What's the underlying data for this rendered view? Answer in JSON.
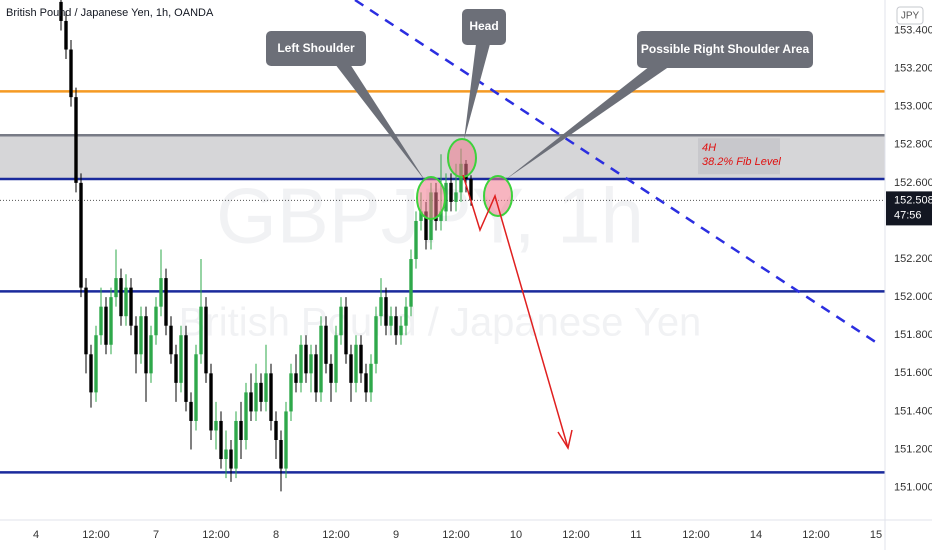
{
  "chart_data": {
    "type": "candlestick",
    "title": "British Pound / Japanese Yen, 1h, OANDA",
    "watermark_symbol": "GBPJPY, 1h",
    "watermark_name": "British Pound / Japanese Yen",
    "currency": "JPY",
    "up_color": "#2ea84a",
    "down_color": "#000000",
    "xlim": [
      -7.2,
      169.8
    ],
    "xticks": [
      {
        "value": 0,
        "label": "4"
      },
      {
        "value": 12,
        "label": "12:00"
      },
      {
        "value": 24,
        "label": "7"
      },
      {
        "value": 36,
        "label": "12:00"
      },
      {
        "value": 48,
        "label": "8"
      },
      {
        "value": 60,
        "label": "12:00"
      },
      {
        "value": 72,
        "label": "9"
      },
      {
        "value": 84,
        "label": "12:00"
      },
      {
        "value": 96,
        "label": "10"
      },
      {
        "value": 108,
        "label": "12:00"
      },
      {
        "value": 120,
        "label": "11"
      },
      {
        "value": 132,
        "label": "12:00"
      },
      {
        "value": 144,
        "label": "14"
      },
      {
        "value": 156,
        "label": "12:00"
      },
      {
        "value": 168,
        "label": "15"
      }
    ],
    "ylim": [
      150.83,
      153.56
    ],
    "yticks": [
      {
        "value": 153.4,
        "label": "153.400"
      },
      {
        "value": 153.2,
        "label": "153.200"
      },
      {
        "value": 153.0,
        "label": "153.000"
      },
      {
        "value": 152.8,
        "label": "152.800"
      },
      {
        "value": 152.6,
        "label": "152.600"
      },
      {
        "value": 152.2,
        "label": "152.200"
      },
      {
        "value": 152.0,
        "label": "152.000"
      },
      {
        "value": 151.8,
        "label": "151.800"
      },
      {
        "value": 151.6,
        "label": "151.600"
      },
      {
        "value": 151.4,
        "label": "151.400"
      },
      {
        "value": 151.2,
        "label": "151.200"
      },
      {
        "value": 151.0,
        "label": "151.000"
      }
    ],
    "grid": false,
    "x": [
      5,
      6,
      7,
      8,
      9,
      10,
      11,
      12,
      13,
      14,
      15,
      16,
      17,
      18,
      19,
      20,
      21,
      22,
      23,
      24,
      25,
      26,
      27,
      28,
      29,
      30,
      31,
      32,
      33,
      34,
      35,
      36,
      37,
      38,
      39,
      40,
      41,
      42,
      43,
      44,
      45,
      46,
      47,
      48,
      49,
      50,
      51,
      52,
      53,
      54,
      55,
      56,
      57,
      58,
      59,
      60,
      61,
      62,
      63,
      64,
      65,
      66,
      67,
      68,
      69,
      70,
      71,
      72,
      73,
      74,
      75,
      76,
      77,
      78,
      79,
      80,
      81,
      82,
      83,
      84,
      85,
      86,
      87
    ],
    "open": [
      153.55,
      153.45,
      153.3,
      153.05,
      152.6,
      152.05,
      151.7,
      151.5,
      151.8,
      151.95,
      151.75,
      152.0,
      152.1,
      151.9,
      152.05,
      151.85,
      151.7,
      151.9,
      151.6,
      151.8,
      151.95,
      152.1,
      151.85,
      151.7,
      151.55,
      151.8,
      151.45,
      151.35,
      151.7,
      151.95,
      151.6,
      151.3,
      151.35,
      151.15,
      151.2,
      151.1,
      151.35,
      151.25,
      151.5,
      151.4,
      151.55,
      151.45,
      151.6,
      151.35,
      151.25,
      151.1,
      151.4,
      151.6,
      151.55,
      151.75,
      151.6,
      151.7,
      151.5,
      151.85,
      151.65,
      151.55,
      151.8,
      151.95,
      151.7,
      151.55,
      151.75,
      151.6,
      151.5,
      151.65,
      151.9,
      152.0,
      151.85,
      151.9,
      151.8,
      151.85,
      151.95,
      152.2,
      152.4,
      152.45,
      152.3,
      152.55,
      152.4,
      152.45,
      152.6,
      152.5,
      152.55,
      152.7,
      152.62
    ],
    "high": [
      153.62,
      153.5,
      153.35,
      153.1,
      152.65,
      152.1,
      151.75,
      151.85,
      152.05,
      152.0,
      152.05,
      152.25,
      152.15,
      152.12,
      152.1,
      151.9,
      151.95,
      151.95,
      151.85,
      152.0,
      152.25,
      152.15,
      151.9,
      151.75,
      151.85,
      151.85,
      151.5,
      151.75,
      152.2,
      152.0,
      151.65,
      151.45,
      151.4,
      151.3,
      151.25,
      151.4,
      151.45,
      151.55,
      151.6,
      151.65,
      151.6,
      151.75,
      151.65,
      151.4,
      151.3,
      151.45,
      151.65,
      151.7,
      151.8,
      151.8,
      151.75,
      151.75,
      151.9,
      151.9,
      151.7,
      151.85,
      152.0,
      152.0,
      151.75,
      151.8,
      151.8,
      151.65,
      151.7,
      151.95,
      152.1,
      152.05,
      151.95,
      151.95,
      151.9,
      152.0,
      152.25,
      152.45,
      152.55,
      152.5,
      152.6,
      152.6,
      152.75,
      152.65,
      152.65,
      152.7,
      152.78,
      152.72,
      152.64
    ],
    "low": [
      153.4,
      153.25,
      153.0,
      152.55,
      152.0,
      151.6,
      151.42,
      151.45,
      151.75,
      151.7,
      151.7,
      151.95,
      151.85,
      151.85,
      151.8,
      151.6,
      151.65,
      151.45,
      151.55,
      151.75,
      151.9,
      151.8,
      151.65,
      151.45,
      151.5,
      151.4,
      151.2,
      151.3,
      151.65,
      151.55,
      151.25,
      151.2,
      151.1,
      151.05,
      151.03,
      151.05,
      151.15,
      151.2,
      151.35,
      151.35,
      151.4,
      151.4,
      151.3,
      151.15,
      150.98,
      151.05,
      151.35,
      151.5,
      151.5,
      151.55,
      151.5,
      151.45,
      151.45,
      151.6,
      151.45,
      151.5,
      151.75,
      151.65,
      151.45,
      151.5,
      151.55,
      151.45,
      151.45,
      151.6,
      151.85,
      151.8,
      151.8,
      151.75,
      151.75,
      151.8,
      151.9,
      152.15,
      152.35,
      152.25,
      152.25,
      152.35,
      152.35,
      152.4,
      152.45,
      152.45,
      152.5,
      152.55,
      152.48
    ],
    "close": [
      153.45,
      153.3,
      153.05,
      152.6,
      152.05,
      151.7,
      151.5,
      151.8,
      151.95,
      151.75,
      152.0,
      152.1,
      151.9,
      152.05,
      151.85,
      151.7,
      151.9,
      151.6,
      151.8,
      151.95,
      152.1,
      151.85,
      151.7,
      151.55,
      151.8,
      151.45,
      151.35,
      151.7,
      151.95,
      151.6,
      151.3,
      151.35,
      151.15,
      151.2,
      151.1,
      151.35,
      151.25,
      151.5,
      151.4,
      151.55,
      151.45,
      151.6,
      151.35,
      151.25,
      151.1,
      151.4,
      151.6,
      151.55,
      151.75,
      151.6,
      151.7,
      151.5,
      151.85,
      151.65,
      151.55,
      151.8,
      151.95,
      151.7,
      151.55,
      151.75,
      151.6,
      151.5,
      151.65,
      151.9,
      152.0,
      151.85,
      151.9,
      151.8,
      151.85,
      151.95,
      152.2,
      152.4,
      152.45,
      152.3,
      152.55,
      152.4,
      152.45,
      152.6,
      152.5,
      152.55,
      152.7,
      152.62,
      152.508
    ],
    "levels": [
      {
        "value": 153.08,
        "color": "#f59a23"
      },
      {
        "value": 152.85,
        "color": "#787b86"
      },
      {
        "value": 152.62,
        "color": "#1a2a9c"
      },
      {
        "value": 152.03,
        "color": "#1a2a9c"
      },
      {
        "value": 151.08,
        "color": "#1a2a9c"
      }
    ],
    "zone": {
      "low": 152.62,
      "high": 152.85,
      "color": "#d6d6d8",
      "labels": [
        "4H",
        "38.2% Fib Level"
      ]
    },
    "last_price": 152.508,
    "countdown": "47:56",
    "annotations": [
      "Left Shoulder",
      "Head",
      "Possible Right Shoulder Area"
    ]
  }
}
